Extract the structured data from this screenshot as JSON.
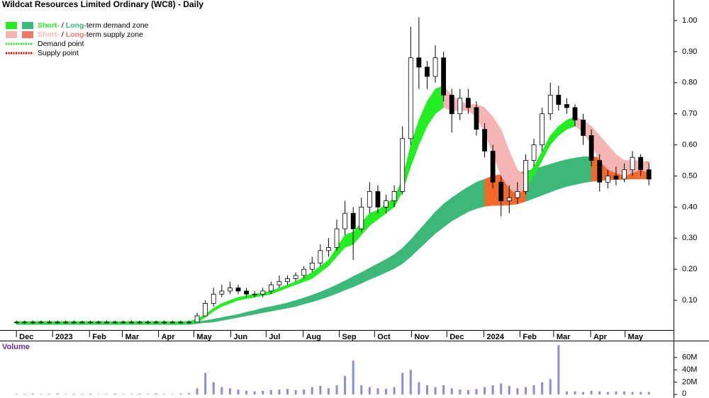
{
  "chart_data": {
    "type": "candlestick",
    "title": "Wildcat Resources Limited Ordinary (WC8) - Daily",
    "xlim": [
      -2,
      80
    ],
    "xticks": [
      {
        "value": 0,
        "label": "Dec"
      },
      {
        "value": 4.4,
        "label": "2023"
      },
      {
        "value": 8.9,
        "label": "Feb"
      },
      {
        "value": 12.9,
        "label": "Mar"
      },
      {
        "value": 17.3,
        "label": "Apr"
      },
      {
        "value": 21.6,
        "label": "May"
      },
      {
        "value": 26.1,
        "label": "Jun"
      },
      {
        "value": 30.4,
        "label": "Jul"
      },
      {
        "value": 34.9,
        "label": "Aug"
      },
      {
        "value": 39.3,
        "label": "Sep"
      },
      {
        "value": 43.6,
        "label": "Oct"
      },
      {
        "value": 48.1,
        "label": "Nov"
      },
      {
        "value": 52.4,
        "label": "Dec"
      },
      {
        "value": 56.9,
        "label": "2024"
      },
      {
        "value": 61.3,
        "label": "Feb"
      },
      {
        "value": 65.4,
        "label": "Mar"
      },
      {
        "value": 69.9,
        "label": "Apr"
      },
      {
        "value": 74.1,
        "label": "May"
      }
    ],
    "ylim": [
      0,
      1.05
    ],
    "yticks": [
      {
        "value": 0.1,
        "label": "0.10"
      },
      {
        "value": 0.2,
        "label": "0.20"
      },
      {
        "value": 0.3,
        "label": "0.30"
      },
      {
        "value": 0.4,
        "label": "0.40"
      },
      {
        "value": 0.5,
        "label": "0.50"
      },
      {
        "value": 0.6,
        "label": "0.60"
      },
      {
        "value": 0.7,
        "label": "0.70"
      },
      {
        "value": 0.8,
        "label": "0.80"
      },
      {
        "value": 0.9,
        "label": "0.90"
      },
      {
        "value": 1.0,
        "label": "1.00"
      }
    ],
    "open": [
      0.03,
      0.03,
      0.03,
      0.03,
      0.03,
      0.03,
      0.03,
      0.03,
      0.03,
      0.03,
      0.03,
      0.03,
      0.03,
      0.03,
      0.03,
      0.03,
      0.03,
      0.03,
      0.03,
      0.03,
      0.03,
      0.03,
      0.03,
      0.05,
      0.09,
      0.12,
      0.13,
      0.14,
      0.13,
      0.12,
      0.12,
      0.13,
      0.15,
      0.16,
      0.17,
      0.18,
      0.2,
      0.22,
      0.26,
      0.27,
      0.33,
      0.38,
      0.33,
      0.4,
      0.45,
      0.4,
      0.42,
      0.45,
      0.62,
      0.88,
      0.85,
      0.82,
      0.88,
      0.76,
      0.7,
      0.75,
      0.72,
      0.65,
      0.58,
      0.48,
      0.42,
      0.43,
      0.45,
      0.55,
      0.6,
      0.7,
      0.76,
      0.73,
      0.72,
      0.68,
      0.63,
      0.55,
      0.48,
      0.5,
      0.49,
      0.52,
      0.56,
      0.52
    ],
    "high": [
      0.035,
      0.035,
      0.035,
      0.035,
      0.035,
      0.035,
      0.035,
      0.035,
      0.035,
      0.035,
      0.035,
      0.035,
      0.035,
      0.035,
      0.035,
      0.035,
      0.035,
      0.035,
      0.035,
      0.035,
      0.035,
      0.035,
      0.06,
      0.1,
      0.14,
      0.15,
      0.16,
      0.15,
      0.14,
      0.13,
      0.14,
      0.16,
      0.18,
      0.18,
      0.19,
      0.21,
      0.24,
      0.28,
      0.3,
      0.36,
      0.42,
      0.4,
      0.43,
      0.48,
      0.47,
      0.44,
      0.47,
      0.66,
      0.98,
      1.01,
      0.87,
      0.92,
      0.9,
      0.78,
      0.78,
      0.78,
      0.74,
      0.67,
      0.6,
      0.5,
      0.47,
      0.48,
      0.57,
      0.62,
      0.72,
      0.8,
      0.79,
      0.75,
      0.73,
      0.7,
      0.65,
      0.57,
      0.52,
      0.53,
      0.54,
      0.58,
      0.57,
      0.54
    ],
    "low": [
      0.025,
      0.025,
      0.025,
      0.025,
      0.025,
      0.025,
      0.025,
      0.025,
      0.025,
      0.025,
      0.025,
      0.025,
      0.025,
      0.025,
      0.025,
      0.025,
      0.025,
      0.025,
      0.025,
      0.025,
      0.025,
      0.025,
      0.03,
      0.05,
      0.08,
      0.11,
      0.12,
      0.12,
      0.11,
      0.11,
      0.11,
      0.12,
      0.14,
      0.15,
      0.16,
      0.17,
      0.19,
      0.21,
      0.24,
      0.26,
      0.31,
      0.23,
      0.32,
      0.38,
      0.38,
      0.38,
      0.4,
      0.44,
      0.6,
      0.78,
      0.78,
      0.8,
      0.74,
      0.64,
      0.68,
      0.7,
      0.63,
      0.56,
      0.46,
      0.37,
      0.38,
      0.41,
      0.44,
      0.53,
      0.58,
      0.68,
      0.71,
      0.7,
      0.66,
      0.6,
      0.53,
      0.45,
      0.46,
      0.47,
      0.48,
      0.5,
      0.5,
      0.47
    ],
    "close": [
      0.03,
      0.03,
      0.03,
      0.03,
      0.03,
      0.03,
      0.03,
      0.03,
      0.03,
      0.03,
      0.03,
      0.03,
      0.03,
      0.03,
      0.03,
      0.03,
      0.03,
      0.03,
      0.03,
      0.03,
      0.03,
      0.03,
      0.05,
      0.09,
      0.12,
      0.13,
      0.14,
      0.13,
      0.12,
      0.12,
      0.13,
      0.15,
      0.16,
      0.17,
      0.18,
      0.2,
      0.22,
      0.26,
      0.27,
      0.33,
      0.38,
      0.33,
      0.4,
      0.45,
      0.4,
      0.42,
      0.45,
      0.62,
      0.88,
      0.85,
      0.82,
      0.88,
      0.76,
      0.7,
      0.75,
      0.72,
      0.65,
      0.58,
      0.48,
      0.42,
      0.43,
      0.45,
      0.55,
      0.6,
      0.7,
      0.76,
      0.73,
      0.72,
      0.68,
      0.63,
      0.55,
      0.48,
      0.5,
      0.49,
      0.52,
      0.56,
      0.52,
      0.49
    ],
    "zones": [
      {
        "color": "#3cb878",
        "upper": [
          0.03,
          0.03,
          0.03,
          0.03,
          0.03,
          0.03,
          0.03,
          0.03,
          0.03,
          0.03,
          0.03,
          0.03,
          0.03,
          0.03,
          0.03,
          0.03,
          0.03,
          0.03,
          0.03,
          0.03,
          0.03,
          0.03,
          0.032,
          0.035,
          0.04,
          0.045,
          0.05,
          0.055,
          0.062,
          0.068,
          0.075,
          0.08,
          0.086,
          0.092,
          0.1,
          0.108,
          0.117,
          0.127,
          0.138,
          0.15,
          0.163,
          0.177,
          0.19,
          0.204,
          0.218,
          0.232,
          0.248,
          0.268,
          0.295,
          0.325,
          0.355,
          0.385,
          0.41,
          0.43,
          0.448,
          0.465,
          0.48,
          0.49,
          null,
          null,
          null,
          null,
          0.515,
          0.522,
          0.53,
          0.538,
          0.546,
          0.553,
          0.558,
          0.562,
          0.562,
          null,
          null,
          null,
          null,
          null,
          null,
          null
        ],
        "lower": [
          0.022,
          0.022,
          0.022,
          0.022,
          0.022,
          0.022,
          0.022,
          0.022,
          0.022,
          0.022,
          0.022,
          0.022,
          0.022,
          0.022,
          0.022,
          0.022,
          0.022,
          0.022,
          0.022,
          0.022,
          0.022,
          0.022,
          0.025,
          0.028,
          0.03,
          0.035,
          0.04,
          0.045,
          0.05,
          0.055,
          0.06,
          0.065,
          0.07,
          0.075,
          0.08,
          0.088,
          0.095,
          0.103,
          0.112,
          0.122,
          0.133,
          0.143,
          0.155,
          0.167,
          0.178,
          0.19,
          0.202,
          0.218,
          0.24,
          0.265,
          0.29,
          0.315,
          0.335,
          0.355,
          0.37,
          0.385,
          0.395,
          0.402,
          null,
          null,
          null,
          null,
          0.418,
          0.428,
          0.438,
          0.448,
          0.458,
          0.466,
          0.472,
          0.478,
          0.482,
          null,
          null,
          null,
          null,
          null,
          null,
          null
        ]
      },
      {
        "color": "#f26a2a",
        "upper": [
          null,
          null,
          null,
          null,
          null,
          null,
          null,
          null,
          null,
          null,
          null,
          null,
          null,
          null,
          null,
          null,
          null,
          null,
          null,
          null,
          null,
          null,
          null,
          null,
          null,
          null,
          null,
          null,
          null,
          null,
          null,
          null,
          null,
          null,
          null,
          null,
          null,
          null,
          null,
          null,
          null,
          null,
          null,
          null,
          null,
          null,
          null,
          null,
          null,
          null,
          null,
          null,
          null,
          null,
          null,
          null,
          null,
          0.49,
          0.5,
          0.505,
          0.508,
          0.51,
          0.515,
          null,
          null,
          null,
          null,
          null,
          null,
          null,
          0.562,
          0.56,
          0.557,
          0.553,
          0.55,
          0.548,
          0.546,
          0.545
        ],
        "lower": [
          null,
          null,
          null,
          null,
          null,
          null,
          null,
          null,
          null,
          null,
          null,
          null,
          null,
          null,
          null,
          null,
          null,
          null,
          null,
          null,
          null,
          null,
          null,
          null,
          null,
          null,
          null,
          null,
          null,
          null,
          null,
          null,
          null,
          null,
          null,
          null,
          null,
          null,
          null,
          null,
          null,
          null,
          null,
          null,
          null,
          null,
          null,
          null,
          null,
          null,
          null,
          null,
          null,
          null,
          null,
          null,
          null,
          0.402,
          0.405,
          0.405,
          0.406,
          0.41,
          0.418,
          null,
          null,
          null,
          null,
          null,
          null,
          null,
          0.482,
          0.485,
          0.487,
          0.488,
          0.489,
          0.49,
          0.49,
          0.49
        ]
      },
      {
        "color": "#22ee22",
        "upper": [
          0.032,
          0.032,
          0.032,
          0.032,
          0.032,
          0.032,
          0.032,
          0.032,
          0.032,
          0.032,
          0.032,
          0.032,
          0.032,
          0.032,
          0.032,
          0.032,
          0.032,
          0.032,
          0.032,
          0.032,
          0.032,
          0.032,
          0.04,
          0.055,
          0.075,
          0.09,
          0.1,
          0.11,
          0.115,
          0.12,
          0.125,
          0.13,
          0.14,
          0.15,
          0.16,
          0.175,
          0.19,
          0.21,
          0.23,
          0.27,
          0.31,
          0.32,
          0.35,
          0.38,
          0.39,
          0.41,
          0.43,
          0.49,
          0.6,
          0.68,
          0.74,
          0.78,
          0.79,
          null,
          null,
          null,
          null,
          null,
          null,
          null,
          null,
          null,
          0.5,
          0.53,
          0.58,
          0.63,
          0.66,
          0.68,
          0.69,
          null,
          null,
          null,
          null,
          null,
          null,
          null,
          null,
          null
        ],
        "lower": [
          0.025,
          0.025,
          0.025,
          0.025,
          0.025,
          0.025,
          0.025,
          0.025,
          0.025,
          0.025,
          0.025,
          0.025,
          0.025,
          0.025,
          0.025,
          0.025,
          0.025,
          0.025,
          0.025,
          0.025,
          0.025,
          0.025,
          0.03,
          0.045,
          0.065,
          0.08,
          0.09,
          0.1,
          0.105,
          0.11,
          0.115,
          0.12,
          0.13,
          0.14,
          0.15,
          0.16,
          0.17,
          0.19,
          0.21,
          0.24,
          0.27,
          0.28,
          0.31,
          0.34,
          0.36,
          0.38,
          0.4,
          0.45,
          0.53,
          0.6,
          0.66,
          0.7,
          0.72,
          null,
          null,
          null,
          null,
          null,
          null,
          null,
          null,
          null,
          0.46,
          0.5,
          0.55,
          0.6,
          0.63,
          0.65,
          0.66,
          null,
          null,
          null,
          null,
          null,
          null,
          null,
          null,
          null
        ]
      },
      {
        "color": "#f5b5b5",
        "upper": [
          null,
          null,
          null,
          null,
          null,
          null,
          null,
          null,
          null,
          null,
          null,
          null,
          null,
          null,
          null,
          null,
          null,
          null,
          null,
          null,
          null,
          null,
          null,
          null,
          null,
          null,
          null,
          null,
          null,
          null,
          null,
          null,
          null,
          null,
          null,
          null,
          null,
          null,
          null,
          null,
          null,
          null,
          null,
          null,
          null,
          null,
          null,
          null,
          null,
          null,
          null,
          null,
          0.79,
          0.76,
          0.74,
          0.73,
          0.73,
          0.72,
          0.69,
          0.65,
          0.58,
          0.52,
          0.5,
          null,
          null,
          null,
          null,
          null,
          0.69,
          0.68,
          0.66,
          0.63,
          0.6,
          0.57,
          0.55,
          0.55,
          0.55,
          0.54
        ],
        "lower": [
          null,
          null,
          null,
          null,
          null,
          null,
          null,
          null,
          null,
          null,
          null,
          null,
          null,
          null,
          null,
          null,
          null,
          null,
          null,
          null,
          null,
          null,
          null,
          null,
          null,
          null,
          null,
          null,
          null,
          null,
          null,
          null,
          null,
          null,
          null,
          null,
          null,
          null,
          null,
          null,
          null,
          null,
          null,
          null,
          null,
          null,
          null,
          null,
          null,
          null,
          null,
          null,
          0.72,
          0.71,
          0.71,
          0.71,
          0.69,
          0.64,
          0.57,
          0.5,
          0.46,
          0.44,
          0.46,
          null,
          null,
          null,
          null,
          null,
          0.66,
          0.64,
          0.6,
          0.55,
          0.52,
          0.51,
          0.5,
          0.51,
          0.52,
          0.51
        ]
      }
    ],
    "legend": [
      {
        "swatches": [
          "#22ee22",
          "#3cb878"
        ],
        "parts": [
          {
            "text": "Short-",
            "color": "#22ee22"
          },
          {
            "text": " / "
          },
          {
            "text": "Long-",
            "color": "#3cb878"
          },
          {
            "text": "term demand zone"
          }
        ]
      },
      {
        "swatches": [
          "#f5b5b5",
          "#f07a6a"
        ],
        "parts": [
          {
            "text": "Short-",
            "color": "#f5b5b5"
          },
          {
            "text": " / "
          },
          {
            "text": "Long-",
            "color": "#f07a6a"
          },
          {
            "text": "term supply zone"
          }
        ]
      },
      {
        "line": "#22ee22",
        "parts": [
          {
            "text": "Demand point"
          }
        ]
      },
      {
        "line": "#dd0000",
        "parts": [
          {
            "text": "Supply point"
          }
        ]
      }
    ],
    "volume": {
      "label": "Volume",
      "color": "#8c8cd8",
      "ylim": [
        0,
        85000000
      ],
      "yticks": [
        0,
        {
          "value": 20000000,
          "label": "20M"
        },
        {
          "value": 40000000,
          "label": "40M"
        },
        {
          "value": 60000000,
          "label": "60M"
        }
      ],
      "values": [
        1000000,
        800000,
        1200000,
        600000,
        900000,
        1500000,
        700000,
        1000000,
        800000,
        1100000,
        600000,
        900000,
        1300000,
        700000,
        800000,
        1000000,
        900000,
        1200000,
        800000,
        700000,
        1500000,
        2000000,
        10000000,
        35000000,
        20000000,
        12000000,
        10000000,
        8000000,
        6000000,
        5000000,
        6000000,
        7000000,
        8000000,
        9000000,
        7000000,
        8000000,
        12000000,
        14000000,
        10000000,
        15000000,
        30000000,
        55000000,
        15000000,
        12000000,
        10000000,
        9000000,
        12000000,
        35000000,
        40000000,
        20000000,
        15000000,
        12000000,
        15000000,
        10000000,
        8000000,
        7000000,
        9000000,
        12000000,
        15000000,
        18000000,
        14000000,
        10000000,
        12000000,
        15000000,
        20000000,
        25000000,
        80000000,
        5000000,
        5000000,
        4000000,
        6000000,
        5000000,
        4000000,
        5000000,
        5000000,
        4000000,
        4000000,
        4000000
      ]
    }
  }
}
